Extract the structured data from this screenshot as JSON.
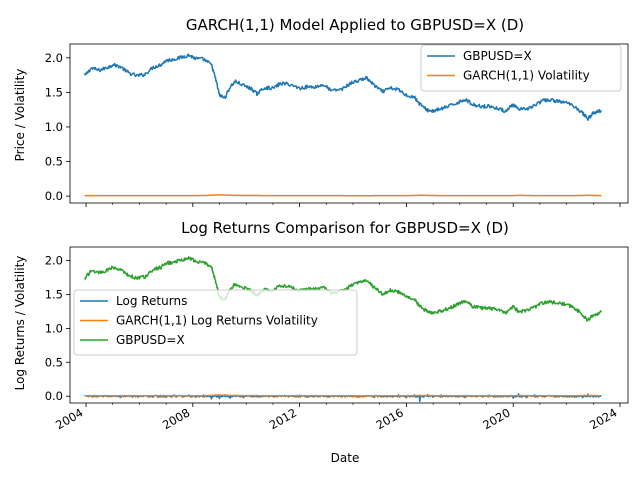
{
  "figure": {
    "xlabel": "Date"
  },
  "chart_data": [
    {
      "type": "line",
      "title": "GARCH(1,1) Model Applied to GBPUSD=X (D)",
      "xlabel": "",
      "ylabel": "Price / Volatility",
      "xlim": [
        2003.4,
        2024.3
      ],
      "ylim": [
        -0.1,
        2.2
      ],
      "x_ticks": [
        2004,
        2008,
        2012,
        2016,
        2020,
        2024
      ],
      "x_tick_labels_shown": false,
      "y_ticks": [
        0.0,
        0.5,
        1.0,
        1.5,
        2.0
      ],
      "y_tick_labels": [
        "0.0",
        "0.5",
        "1.0",
        "1.5",
        "2.0"
      ],
      "grid": false,
      "legend_position": "top-right",
      "x_years": [
        2003.95,
        2004.2,
        2004.5,
        2004.8,
        2005.0,
        2005.3,
        2005.6,
        2005.9,
        2006.2,
        2006.5,
        2006.8,
        2007.0,
        2007.3,
        2007.6,
        2007.85,
        2008.1,
        2008.4,
        2008.7,
        2008.85,
        2009.0,
        2009.2,
        2009.4,
        2009.6,
        2009.9,
        2010.2,
        2010.4,
        2010.7,
        2011.0,
        2011.3,
        2011.6,
        2012.0,
        2012.3,
        2012.6,
        2012.9,
        2013.2,
        2013.6,
        2013.9,
        2014.2,
        2014.5,
        2014.8,
        2015.1,
        2015.4,
        2015.7,
        2016.0,
        2016.3,
        2016.5,
        2016.8,
        2017.0,
        2017.3,
        2017.6,
        2017.9,
        2018.2,
        2018.5,
        2018.8,
        2019.1,
        2019.4,
        2019.7,
        2020.0,
        2020.2,
        2020.5,
        2020.8,
        2021.1,
        2021.4,
        2021.7,
        2022.0,
        2022.3,
        2022.6,
        2022.8,
        2023.0,
        2023.3
      ],
      "series": [
        {
          "name": "GBPUSD=X",
          "color": "#1f77b4",
          "values": [
            1.74,
            1.85,
            1.82,
            1.86,
            1.9,
            1.87,
            1.78,
            1.74,
            1.76,
            1.86,
            1.9,
            1.96,
            1.98,
            2.01,
            2.04,
            1.99,
            1.98,
            1.9,
            1.7,
            1.46,
            1.42,
            1.58,
            1.66,
            1.6,
            1.55,
            1.48,
            1.57,
            1.56,
            1.63,
            1.62,
            1.56,
            1.58,
            1.58,
            1.61,
            1.52,
            1.55,
            1.63,
            1.67,
            1.71,
            1.6,
            1.51,
            1.56,
            1.54,
            1.46,
            1.43,
            1.33,
            1.24,
            1.23,
            1.26,
            1.3,
            1.35,
            1.4,
            1.32,
            1.3,
            1.3,
            1.27,
            1.23,
            1.32,
            1.25,
            1.26,
            1.31,
            1.38,
            1.39,
            1.37,
            1.35,
            1.3,
            1.2,
            1.12,
            1.2,
            1.24
          ]
        },
        {
          "name": "GARCH(1,1) Volatility",
          "color": "#ff7f0e",
          "values": [
            0.006,
            0.006,
            0.006,
            0.006,
            0.006,
            0.006,
            0.006,
            0.006,
            0.006,
            0.006,
            0.006,
            0.006,
            0.006,
            0.006,
            0.006,
            0.007,
            0.008,
            0.012,
            0.016,
            0.018,
            0.015,
            0.012,
            0.01,
            0.009,
            0.008,
            0.008,
            0.007,
            0.007,
            0.007,
            0.006,
            0.006,
            0.006,
            0.006,
            0.006,
            0.006,
            0.006,
            0.005,
            0.005,
            0.005,
            0.006,
            0.006,
            0.006,
            0.006,
            0.007,
            0.008,
            0.012,
            0.01,
            0.008,
            0.007,
            0.007,
            0.006,
            0.006,
            0.006,
            0.006,
            0.006,
            0.006,
            0.006,
            0.007,
            0.011,
            0.008,
            0.007,
            0.006,
            0.006,
            0.006,
            0.006,
            0.007,
            0.009,
            0.012,
            0.009,
            0.007
          ]
        }
      ]
    },
    {
      "type": "line",
      "title": "Log Returns Comparison for GBPUSD=X (D)",
      "xlabel": "Date",
      "ylabel": "Log Returns / Volatility",
      "xlim": [
        2003.4,
        2024.3
      ],
      "ylim": [
        -0.1,
        2.2
      ],
      "x_ticks": [
        2004,
        2008,
        2012,
        2016,
        2020,
        2024
      ],
      "x_tick_labels": [
        "2004",
        "2008",
        "2012",
        "2016",
        "2020",
        "2024"
      ],
      "y_ticks": [
        0.0,
        0.5,
        1.0,
        1.5,
        2.0
      ],
      "y_tick_labels": [
        "0.0",
        "0.5",
        "1.0",
        "1.5",
        "2.0"
      ],
      "grid": false,
      "legend_position": "center-left",
      "x_years": [
        2003.95,
        2004.2,
        2004.5,
        2004.8,
        2005.0,
        2005.3,
        2005.6,
        2005.9,
        2006.2,
        2006.5,
        2006.8,
        2007.0,
        2007.3,
        2007.6,
        2007.85,
        2008.1,
        2008.4,
        2008.7,
        2008.85,
        2009.0,
        2009.2,
        2009.4,
        2009.6,
        2009.9,
        2010.2,
        2010.4,
        2010.7,
        2011.0,
        2011.3,
        2011.6,
        2012.0,
        2012.3,
        2012.6,
        2012.9,
        2013.2,
        2013.6,
        2013.9,
        2014.2,
        2014.5,
        2014.8,
        2015.1,
        2015.4,
        2015.7,
        2016.0,
        2016.3,
        2016.5,
        2016.8,
        2017.0,
        2017.3,
        2017.6,
        2017.9,
        2018.2,
        2018.5,
        2018.8,
        2019.1,
        2019.4,
        2019.7,
        2020.0,
        2020.2,
        2020.5,
        2020.8,
        2021.1,
        2021.4,
        2021.7,
        2022.0,
        2022.3,
        2022.6,
        2022.8,
        2023.0,
        2023.3
      ],
      "series": [
        {
          "name": "Log Returns",
          "color": "#1f77b4",
          "values": [
            0.01,
            -0.008,
            0.012,
            -0.01,
            0.008,
            -0.012,
            0.009,
            -0.006,
            0.01,
            -0.009,
            0.007,
            -0.01,
            0.012,
            -0.008,
            0.01,
            -0.015,
            0.02,
            -0.03,
            0.03,
            -0.035,
            0.025,
            -0.02,
            0.015,
            -0.012,
            0.01,
            -0.015,
            0.012,
            -0.01,
            0.009,
            -0.011,
            0.008,
            -0.01,
            0.009,
            -0.007,
            0.01,
            -0.009,
            0.006,
            -0.008,
            0.007,
            -0.01,
            0.012,
            -0.01,
            0.009,
            -0.015,
            0.02,
            -0.08,
            0.015,
            -0.01,
            0.01,
            -0.009,
            0.008,
            -0.01,
            0.009,
            -0.008,
            0.015,
            -0.012,
            0.01,
            -0.02,
            0.03,
            -0.015,
            0.012,
            -0.009,
            0.008,
            -0.01,
            0.012,
            -0.015,
            -0.03,
            0.03,
            -0.012,
            0.01
          ]
        },
        {
          "name": "GARCH(1,1) Log Returns Volatility",
          "color": "#ff7f0e",
          "values": [
            0.006,
            0.006,
            0.006,
            0.006,
            0.006,
            0.006,
            0.006,
            0.006,
            0.006,
            0.006,
            0.006,
            0.006,
            0.006,
            0.006,
            0.006,
            0.007,
            0.008,
            0.012,
            0.016,
            0.018,
            0.015,
            0.012,
            0.01,
            0.009,
            0.008,
            0.008,
            0.007,
            0.007,
            0.007,
            0.006,
            0.006,
            0.006,
            0.006,
            0.006,
            0.006,
            0.006,
            0.005,
            0.005,
            0.005,
            0.006,
            0.006,
            0.006,
            0.006,
            0.007,
            0.008,
            0.012,
            0.01,
            0.008,
            0.007,
            0.007,
            0.006,
            0.006,
            0.006,
            0.006,
            0.006,
            0.006,
            0.006,
            0.007,
            0.011,
            0.008,
            0.007,
            0.006,
            0.006,
            0.006,
            0.006,
            0.007,
            0.009,
            0.012,
            0.009,
            0.007
          ]
        },
        {
          "name": "GBPUSD=X",
          "color": "#2ca02c",
          "values": [
            1.74,
            1.85,
            1.82,
            1.86,
            1.9,
            1.87,
            1.78,
            1.74,
            1.76,
            1.86,
            1.9,
            1.96,
            1.98,
            2.01,
            2.04,
            1.99,
            1.98,
            1.9,
            1.7,
            1.46,
            1.42,
            1.58,
            1.66,
            1.6,
            1.55,
            1.48,
            1.57,
            1.56,
            1.63,
            1.62,
            1.56,
            1.58,
            1.58,
            1.61,
            1.52,
            1.55,
            1.63,
            1.67,
            1.71,
            1.6,
            1.51,
            1.56,
            1.54,
            1.46,
            1.43,
            1.33,
            1.24,
            1.23,
            1.26,
            1.3,
            1.35,
            1.4,
            1.32,
            1.3,
            1.3,
            1.27,
            1.23,
            1.32,
            1.25,
            1.26,
            1.31,
            1.38,
            1.39,
            1.37,
            1.35,
            1.3,
            1.2,
            1.12,
            1.2,
            1.24
          ]
        }
      ]
    }
  ]
}
